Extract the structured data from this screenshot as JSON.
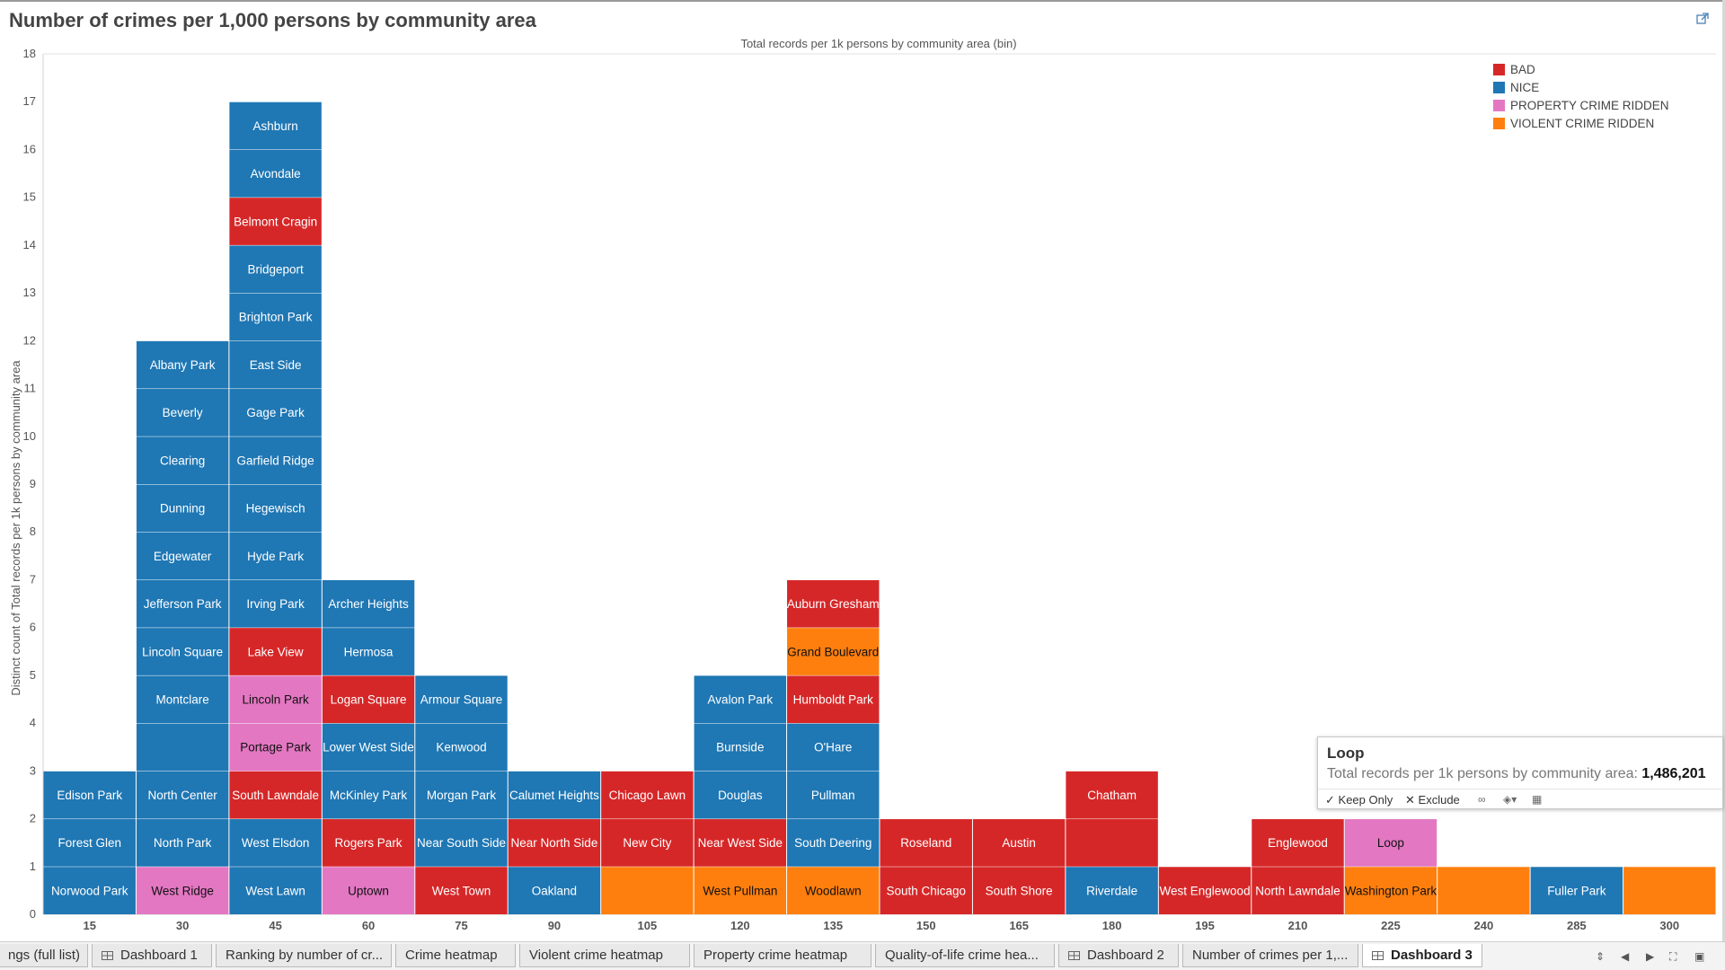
{
  "title": "Number of crimes per 1,000 persons by community area",
  "icons": {
    "external_link": "external-link-icon"
  },
  "chart_data": {
    "type": "bar",
    "subtype": "stacked-unit-bins",
    "title": "Total records per 1k persons by community area (bin)",
    "xlabel": "",
    "ylabel": "Distinct count of Total records per 1k persons by community area",
    "ylim": [
      0,
      18
    ],
    "yticks": [
      0,
      1,
      2,
      3,
      4,
      5,
      6,
      7,
      8,
      9,
      10,
      11,
      12,
      13,
      14,
      15,
      16,
      17,
      18
    ],
    "grid": false,
    "legend_position": "top-right",
    "legend": [
      {
        "key": "BAD",
        "label": "BAD",
        "color": "#d62728"
      },
      {
        "key": "NICE",
        "label": "NICE",
        "color": "#1f77b4"
      },
      {
        "key": "PROPERTY",
        "label": "PROPERTY CRIME RIDDEN",
        "color": "#e377c2"
      },
      {
        "key": "VIOLENT",
        "label": "VIOLENT CRIME RIDDEN",
        "color": "#ff7f0e"
      }
    ],
    "categories": [
      "15",
      "30",
      "45",
      "60",
      "75",
      "90",
      "105",
      "120",
      "135",
      "150",
      "165",
      "180",
      "195",
      "210",
      "225",
      "240",
      "285",
      "300"
    ],
    "series": [
      {
        "name": "15",
        "value": 3,
        "stack": [
          {
            "label": "Norwood Park",
            "cat": "NICE"
          },
          {
            "label": "Forest Glen",
            "cat": "NICE"
          },
          {
            "label": "Edison Park",
            "cat": "NICE"
          }
        ]
      },
      {
        "name": "30",
        "value": 12,
        "stack": [
          {
            "label": "West Ridge",
            "cat": "PROPERTY"
          },
          {
            "label": "North Park",
            "cat": "NICE"
          },
          {
            "label": "North Center",
            "cat": "NICE"
          },
          {
            "label": "",
            "cat": "NICE"
          },
          {
            "label": "Montclare",
            "cat": "NICE"
          },
          {
            "label": "Lincoln Square",
            "cat": "NICE"
          },
          {
            "label": "Jefferson Park",
            "cat": "NICE"
          },
          {
            "label": "Edgewater",
            "cat": "NICE"
          },
          {
            "label": "Dunning",
            "cat": "NICE"
          },
          {
            "label": "Clearing",
            "cat": "NICE"
          },
          {
            "label": "Beverly",
            "cat": "NICE"
          },
          {
            "label": "Albany Park",
            "cat": "NICE"
          }
        ]
      },
      {
        "name": "45",
        "value": 17,
        "stack": [
          {
            "label": "West Lawn",
            "cat": "NICE"
          },
          {
            "label": "West Elsdon",
            "cat": "NICE"
          },
          {
            "label": "South Lawndale",
            "cat": "BAD"
          },
          {
            "label": "Portage Park",
            "cat": "PROPERTY"
          },
          {
            "label": "Lincoln Park",
            "cat": "PROPERTY"
          },
          {
            "label": "Lake View",
            "cat": "BAD"
          },
          {
            "label": "Irving Park",
            "cat": "NICE"
          },
          {
            "label": "Hyde Park",
            "cat": "NICE"
          },
          {
            "label": "Hegewisch",
            "cat": "NICE"
          },
          {
            "label": "Garfield Ridge",
            "cat": "NICE"
          },
          {
            "label": "Gage Park",
            "cat": "NICE"
          },
          {
            "label": "East Side",
            "cat": "NICE"
          },
          {
            "label": "Brighton Park",
            "cat": "NICE"
          },
          {
            "label": "Bridgeport",
            "cat": "NICE"
          },
          {
            "label": "Belmont Cragin",
            "cat": "BAD"
          },
          {
            "label": "Avondale",
            "cat": "NICE"
          },
          {
            "label": "Ashburn",
            "cat": "NICE"
          }
        ]
      },
      {
        "name": "60",
        "value": 7,
        "stack": [
          {
            "label": "Uptown",
            "cat": "PROPERTY"
          },
          {
            "label": "Rogers Park",
            "cat": "BAD"
          },
          {
            "label": "McKinley Park",
            "cat": "NICE"
          },
          {
            "label": "Lower West Side",
            "cat": "NICE"
          },
          {
            "label": "Logan Square",
            "cat": "BAD"
          },
          {
            "label": "Hermosa",
            "cat": "NICE"
          },
          {
            "label": "Archer Heights",
            "cat": "NICE"
          }
        ]
      },
      {
        "name": "75",
        "value": 5,
        "stack": [
          {
            "label": "West Town",
            "cat": "BAD"
          },
          {
            "label": "Near South Side",
            "cat": "NICE"
          },
          {
            "label": "Morgan Park",
            "cat": "NICE"
          },
          {
            "label": "Kenwood",
            "cat": "NICE"
          },
          {
            "label": "Armour Square",
            "cat": "NICE"
          }
        ]
      },
      {
        "name": "90",
        "value": 3,
        "stack": [
          {
            "label": "Oakland",
            "cat": "NICE"
          },
          {
            "label": "Near North Side",
            "cat": "BAD"
          },
          {
            "label": "Calumet Heights",
            "cat": "NICE"
          }
        ]
      },
      {
        "name": "105",
        "value": 3,
        "stack": [
          {
            "label": "",
            "cat": "VIOLENT"
          },
          {
            "label": "New City",
            "cat": "BAD"
          },
          {
            "label": "Chicago Lawn",
            "cat": "BAD"
          }
        ]
      },
      {
        "name": "120",
        "value": 5,
        "stack": [
          {
            "label": "West Pullman",
            "cat": "VIOLENT"
          },
          {
            "label": "Near West Side",
            "cat": "BAD"
          },
          {
            "label": "Douglas",
            "cat": "NICE"
          },
          {
            "label": "Burnside",
            "cat": "NICE"
          },
          {
            "label": "Avalon Park",
            "cat": "NICE"
          }
        ]
      },
      {
        "name": "135",
        "value": 7,
        "stack": [
          {
            "label": "Woodlawn",
            "cat": "VIOLENT"
          },
          {
            "label": "South Deering",
            "cat": "NICE"
          },
          {
            "label": "Pullman",
            "cat": "NICE"
          },
          {
            "label": "O'Hare",
            "cat": "NICE"
          },
          {
            "label": "Humboldt Park",
            "cat": "BAD"
          },
          {
            "label": "Grand Boulevard",
            "cat": "VIOLENT"
          },
          {
            "label": "Auburn Gresham",
            "cat": "BAD"
          }
        ]
      },
      {
        "name": "150",
        "value": 2,
        "stack": [
          {
            "label": "South Chicago",
            "cat": "BAD"
          },
          {
            "label": "Roseland",
            "cat": "BAD"
          }
        ]
      },
      {
        "name": "165",
        "value": 2,
        "stack": [
          {
            "label": "South Shore",
            "cat": "BAD"
          },
          {
            "label": "Austin",
            "cat": "BAD"
          }
        ]
      },
      {
        "name": "180",
        "value": 3,
        "stack": [
          {
            "label": "Riverdale",
            "cat": "NICE"
          },
          {
            "label": "",
            "cat": "BAD"
          },
          {
            "label": "Chatham",
            "cat": "BAD"
          }
        ]
      },
      {
        "name": "195",
        "value": 1,
        "stack": [
          {
            "label": "West Englewood",
            "cat": "BAD"
          }
        ]
      },
      {
        "name": "210",
        "value": 2,
        "stack": [
          {
            "label": "North Lawndale",
            "cat": "BAD"
          },
          {
            "label": "Englewood",
            "cat": "BAD"
          }
        ]
      },
      {
        "name": "225",
        "value": 2,
        "stack": [
          {
            "label": "Washington Park",
            "cat": "VIOLENT"
          },
          {
            "label": "Loop",
            "cat": "PROPERTY"
          }
        ]
      },
      {
        "name": "240",
        "value": 1,
        "stack": [
          {
            "label": "",
            "cat": "VIOLENT"
          }
        ]
      },
      {
        "name": "285",
        "value": 1,
        "stack": [
          {
            "label": "Fuller Park",
            "cat": "NICE"
          }
        ]
      },
      {
        "name": "300",
        "value": 1,
        "stack": [
          {
            "label": "",
            "cat": "VIOLENT"
          }
        ]
      }
    ]
  },
  "tooltip": {
    "title": "Loop",
    "measure_label": "Total records per 1k persons by community area:",
    "measure_value": "1,486,201",
    "keep_only_label": "Keep Only",
    "exclude_label": "Exclude",
    "keep_icon": "check-icon",
    "exclude_icon": "x-icon",
    "group_icon": "paperclip-icon",
    "set_icon": "set-icon",
    "view_data_icon": "view-data-icon"
  },
  "tabs": [
    {
      "label": "ngs (full list)",
      "icon": null,
      "active": false
    },
    {
      "label": "Dashboard 1",
      "icon": "dashboard-grid-icon",
      "active": false
    },
    {
      "label": "Ranking by number of cr...",
      "icon": null,
      "active": false
    },
    {
      "label": "Crime heatmap",
      "icon": null,
      "active": false
    },
    {
      "label": "Violent crime heatmap",
      "icon": null,
      "active": false
    },
    {
      "label": "Property crime heatmap",
      "icon": null,
      "active": false
    },
    {
      "label": "Quality-of-life crime hea...",
      "icon": null,
      "active": false
    },
    {
      "label": "Dashboard 2",
      "icon": "dashboard-grid-icon",
      "active": false
    },
    {
      "label": "Number of crimes per 1,...",
      "icon": null,
      "active": false
    },
    {
      "label": "Dashboard 3",
      "icon": "dashboard-grid-icon",
      "active": true
    }
  ],
  "tab_nav_icons": [
    "sort-arrows-icon",
    "prev-arrow-icon",
    "next-arrow-icon",
    "fullscreen-icon",
    "presentation-icon"
  ]
}
